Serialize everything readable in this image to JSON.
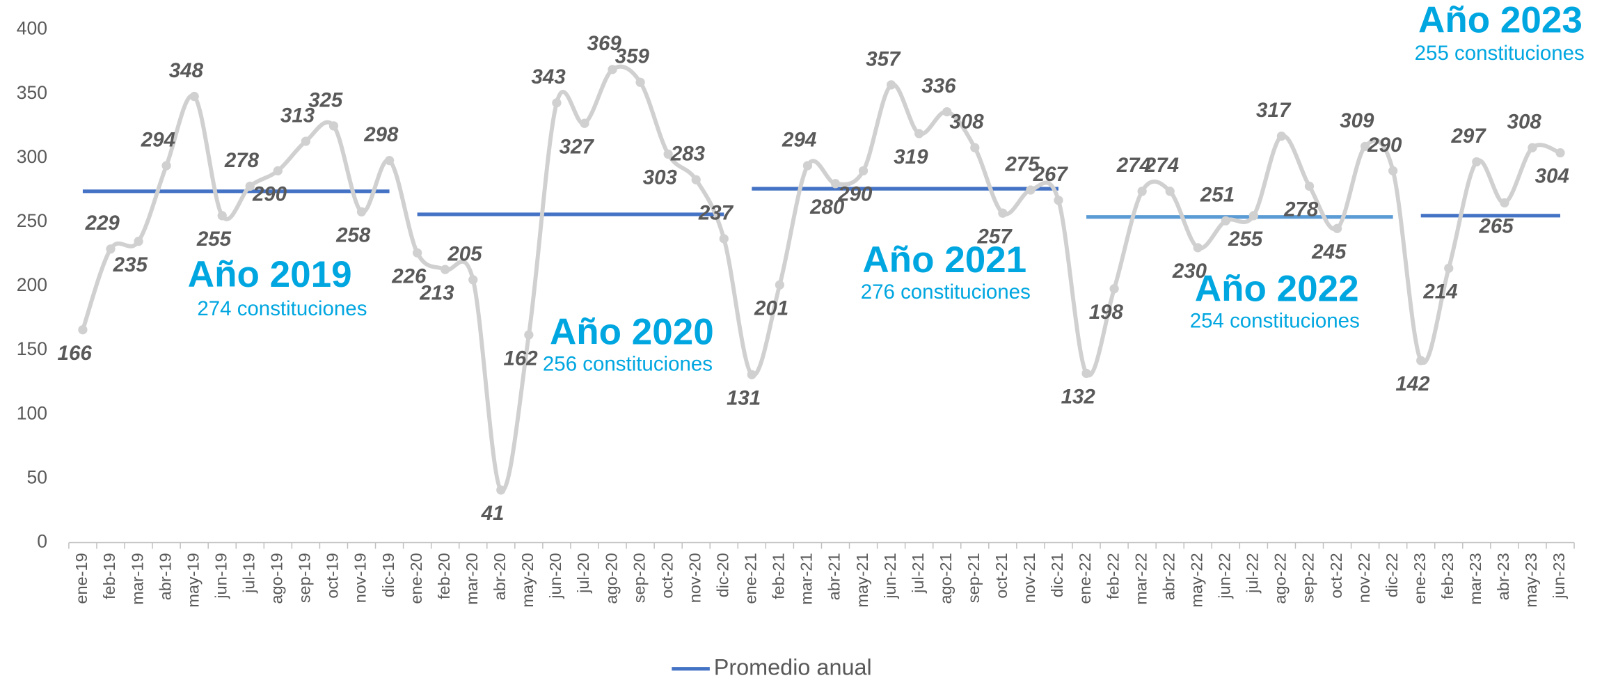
{
  "chart_data": {
    "type": "line",
    "categories": [
      "ene-19",
      "feb-19",
      "mar-19",
      "abr-19",
      "may-19",
      "jun-19",
      "jul-19",
      "ago-19",
      "sep-19",
      "oct-19",
      "nov-19",
      "dic-19",
      "ene-20",
      "feb-20",
      "mar-20",
      "abr-20",
      "may-20",
      "jun-20",
      "jul-20",
      "ago-20",
      "sep-20",
      "oct-20",
      "nov-20",
      "dic-20",
      "ene-21",
      "feb-21",
      "mar-21",
      "abr-21",
      "may-21",
      "jun-21",
      "jul-21",
      "ago-21",
      "sep-21",
      "oct-21",
      "nov-21",
      "dic-21",
      "ene-22",
      "feb-22",
      "mar-22",
      "abr-22",
      "may-22",
      "jun-22",
      "jul-22",
      "ago-22",
      "sep-22",
      "oct-22",
      "nov-22",
      "dic-22",
      "ene-23",
      "feb-23",
      "mar-23",
      "abr-23",
      "may-23",
      "jun-23"
    ],
    "values": [
      166,
      229,
      235,
      294,
      348,
      255,
      278,
      290,
      313,
      325,
      258,
      298,
      226,
      213,
      205,
      41,
      162,
      343,
      327,
      369,
      359,
      303,
      283,
      237,
      131,
      201,
      294,
      280,
      290,
      357,
      319,
      336,
      308,
      257,
      275,
      267,
      132,
      198,
      274,
      274,
      230,
      251,
      255,
      317,
      278,
      245,
      309,
      290,
      142,
      214,
      297,
      265,
      308,
      304
    ],
    "color": "#d0d0d0",
    "ylim": [
      0,
      400
    ],
    "yticks": [
      0,
      50,
      100,
      150,
      200,
      250,
      300,
      350,
      400
    ],
    "averages": {
      "name": "Promedio anual",
      "color": "#4472c4",
      "colors": [
        "#4472c4",
        "#4472c4",
        "#4472c4",
        "#5b9bd5",
        "#4472c4"
      ],
      "values": [
        274,
        256,
        276,
        254,
        255
      ],
      "titles": [
        "Año 2019",
        "Año 2020",
        "Año 2021",
        "Año 2022",
        "Año 2023"
      ],
      "value_labels": [
        "274 constituciones",
        "256 constituciones",
        "276 constituciones",
        "254 constituciones",
        "255 constituciones"
      ]
    }
  }
}
